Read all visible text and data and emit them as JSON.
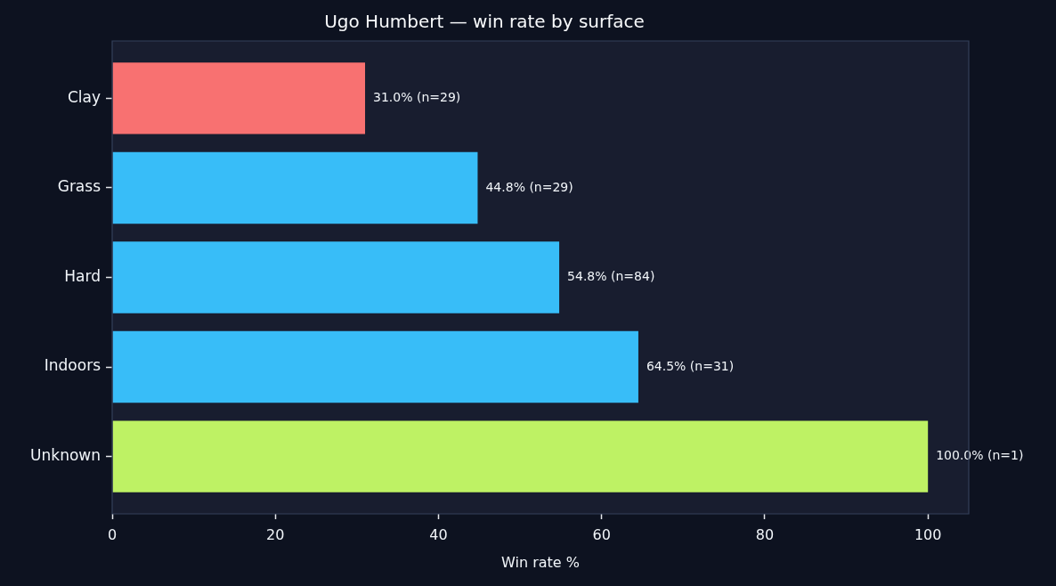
{
  "chart_data": {
    "type": "bar",
    "orientation": "horizontal",
    "title": "Ugo Humbert — win rate by surface",
    "xlabel": "Win rate %",
    "categories": [
      "Clay",
      "Grass",
      "Hard",
      "Indoors",
      "Unknown"
    ],
    "values": [
      31.0,
      44.8,
      54.8,
      64.5,
      100.0
    ],
    "colors": [
      "#f87171",
      "#38bdf8",
      "#38bdf8",
      "#38bdf8",
      "#bef264"
    ],
    "value_labels": [
      "31.0% (n=29)",
      "44.8% (n=29)",
      "54.8% (n=84)",
      "64.5% (n=31)",
      "100.0% (n=1)"
    ],
    "xlim": [
      0,
      105
    ],
    "xticks": [
      0,
      20,
      40,
      60,
      80,
      100
    ]
  }
}
